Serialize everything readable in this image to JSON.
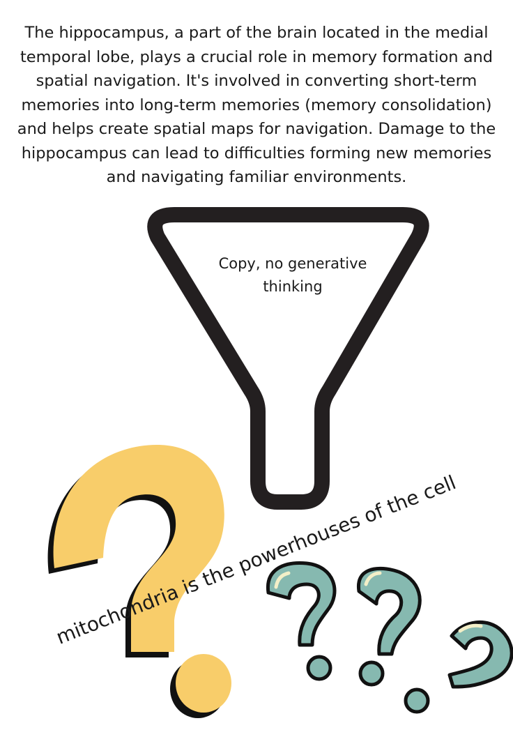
{
  "paragraph": "The hippocampus, a part of the brain located in the medial temporal lobe, plays a crucial role in memory formation and spatial navigation. It's involved in converting short-term memories into long-term memories (memory consolidation) and helps create spatial maps for navigation. Damage to the hippocampus can lead to difficulties forming new memories and navigating familiar environments.",
  "funnel": {
    "label": "Copy, no generative thinking"
  },
  "rotated_caption": "mitochondria is the powerhouses of the cell",
  "colors": {
    "funnel_stroke": "#231f20",
    "big_question_fill": "#f8cd6a",
    "small_question_fill": "#86b9b0",
    "outline": "#111111",
    "highlight": "#f3efc8"
  },
  "icons": [
    "funnel-icon",
    "large-question-mark-icon",
    "small-question-mark-icon"
  ]
}
